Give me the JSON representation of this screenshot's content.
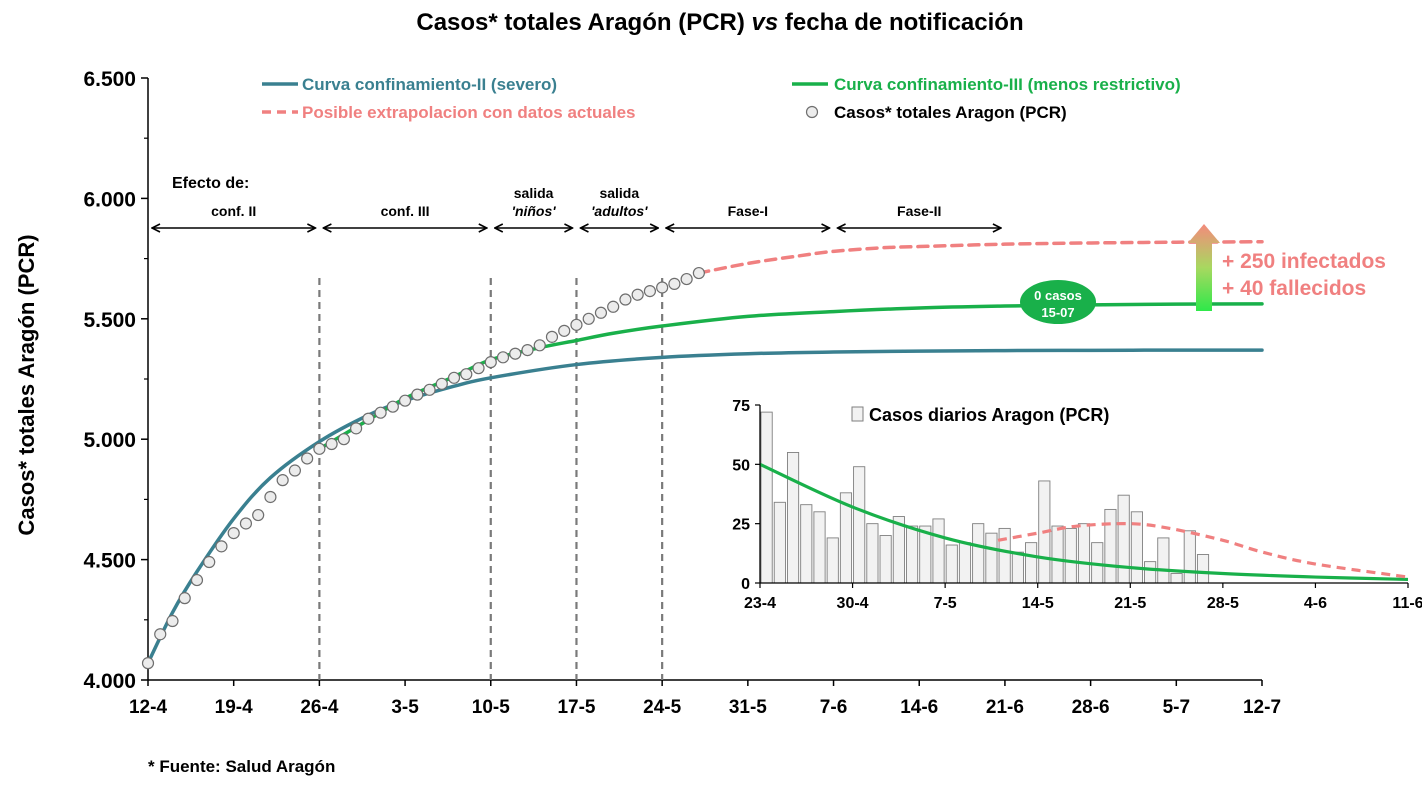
{
  "title_parts": [
    "Casos* totales Aragón (PCR) ",
    "vs",
    " fecha de notificación"
  ],
  "source_note": "* Fuente: Salud Aragón",
  "colors": {
    "teal": "#3a8090",
    "green": "#19b04a",
    "salmon": "#f08080",
    "axis": "#000000",
    "bar_fill": "#f2f2f2",
    "bar_stroke": "#7f7f7f",
    "marker_fill": "#ececec",
    "marker_stroke": "#6e6e6e"
  },
  "annotations": {
    "effect_title": "Efecto de:",
    "phases": [
      {
        "lines": [
          "conf. II"
        ],
        "from": "12-4",
        "to": "26-4"
      },
      {
        "lines": [
          "conf. III"
        ],
        "from": "26-4",
        "to": "10-5"
      },
      {
        "lines": [
          "salida",
          "'niños'"
        ],
        "from": "10-5",
        "to": "17-5"
      },
      {
        "lines": [
          "salida",
          "'adultos'"
        ],
        "from": "17-5",
        "to": "24-5"
      },
      {
        "lines": [
          "Fase-I"
        ],
        "from": "24-5",
        "to": "7-6"
      },
      {
        "lines": [
          "Fase-II"
        ],
        "from": "7-6",
        "to": "21-6"
      }
    ],
    "badge_lines": [
      "0 casos",
      "15-07"
    ],
    "infected": "+ 250 infectados",
    "deaths": "+ 40 fallecidos"
  },
  "chart_data": [
    {
      "type": "line",
      "title": "Casos* totales Aragón (PCR) vs fecha de notificación",
      "ylabel": "Casos* totales Aragón (PCR)",
      "xlabel": "",
      "x_ticks": [
        "12-4",
        "19-4",
        "26-4",
        "3-5",
        "10-5",
        "17-5",
        "24-5",
        "31-5",
        "7-6",
        "14-6",
        "21-6",
        "28-6",
        "5-7",
        "12-7"
      ],
      "xlim_days": [
        0,
        91
      ],
      "ylim": [
        4000,
        6500
      ],
      "y_ticks": [
        4000,
        4500,
        5000,
        5500,
        6000,
        6500
      ],
      "y_tick_labels": [
        "4.000",
        "4.500",
        "5.000",
        "5.500",
        "6.000",
        "6.500"
      ],
      "legend": "top",
      "vertical_lines_at": [
        "26-4",
        "10-5",
        "17-5",
        "24-5"
      ],
      "series": [
        {
          "name": "Curva confinamiento-II (severo)",
          "style": "solid",
          "color": "#3a8090",
          "x": [
            0,
            2,
            4,
            7,
            10,
            14,
            18,
            21,
            25,
            28,
            35,
            42,
            49,
            56,
            63,
            70,
            77,
            84,
            91
          ],
          "y": [
            4070,
            4280,
            4450,
            4670,
            4840,
            4990,
            5100,
            5160,
            5220,
            5255,
            5310,
            5340,
            5355,
            5362,
            5366,
            5368,
            5369,
            5370,
            5370
          ]
        },
        {
          "name": "Curva confinamiento-III (menos restrictivo)",
          "style": "solid",
          "color": "#19b04a",
          "x": [
            14,
            18,
            21,
            25,
            28,
            32,
            35,
            38,
            42,
            49,
            56,
            63,
            70,
            77,
            84,
            91
          ],
          "y": [
            4960,
            5080,
            5170,
            5260,
            5330,
            5380,
            5410,
            5440,
            5470,
            5510,
            5530,
            5545,
            5553,
            5558,
            5561,
            5562
          ]
        },
        {
          "name": "Posible extrapolacion con datos actuales",
          "style": "dashed",
          "color": "#f08080",
          "x": [
            45,
            49,
            53,
            56,
            60,
            63,
            70,
            77,
            84,
            91
          ],
          "y": [
            5690,
            5730,
            5760,
            5780,
            5795,
            5800,
            5810,
            5815,
            5818,
            5820
          ]
        },
        {
          "name": "Casos* totales Aragon (PCR)",
          "style": "markers",
          "x": [
            0,
            1,
            2,
            3,
            4,
            5,
            6,
            7,
            8,
            9,
            10,
            11,
            12,
            13,
            14,
            15,
            16,
            17,
            18,
            19,
            20,
            21,
            22,
            23,
            24,
            25,
            26,
            27,
            28,
            29,
            30,
            31,
            32,
            33,
            34,
            35,
            36,
            37,
            38,
            39,
            40,
            41,
            42,
            43,
            44,
            45
          ],
          "y": [
            4070,
            4190,
            4245,
            4340,
            4415,
            4490,
            4555,
            4610,
            4650,
            4685,
            4760,
            4830,
            4870,
            4920,
            4960,
            4980,
            5000,
            5045,
            5085,
            5110,
            5135,
            5160,
            5185,
            5205,
            5230,
            5255,
            5270,
            5295,
            5320,
            5340,
            5355,
            5370,
            5390,
            5425,
            5450,
            5475,
            5500,
            5525,
            5550,
            5580,
            5600,
            5615,
            5630,
            5645,
            5665,
            5690
          ]
        }
      ]
    },
    {
      "type": "bar",
      "title": "",
      "legend_name": "Casos diarios Aragon (PCR)",
      "x_ticks": [
        "23-4",
        "30-4",
        "7-5",
        "14-5",
        "21-5",
        "28-5",
        "4-6",
        "11-6"
      ],
      "xlim_days": [
        0,
        49
      ],
      "ylim": [
        0,
        75
      ],
      "y_ticks": [
        0,
        25,
        50,
        75
      ],
      "values": [
        72,
        34,
        55,
        33,
        30,
        19,
        38,
        49,
        25,
        20,
        28,
        24,
        24,
        27,
        16,
        17,
        25,
        21,
        23,
        13,
        17,
        43,
        24,
        23,
        25,
        17,
        31,
        37,
        30,
        9,
        19,
        4,
        22,
        12
      ],
      "series": [
        {
          "name": "trend-green",
          "style": "solid",
          "color": "#19b04a",
          "x": [
            0,
            7,
            14,
            21,
            28,
            35,
            42,
            49
          ],
          "y": [
            50,
            32,
            19,
            11,
            6.5,
            4,
            2.5,
            1.5
          ]
        },
        {
          "name": "trend-salmon",
          "style": "dashed",
          "color": "#f08080",
          "x": [
            18,
            21,
            24,
            28,
            31,
            35,
            38,
            42,
            49
          ],
          "y": [
            18,
            21,
            24,
            25,
            23,
            18,
            13,
            8,
            2.5
          ]
        }
      ]
    }
  ]
}
